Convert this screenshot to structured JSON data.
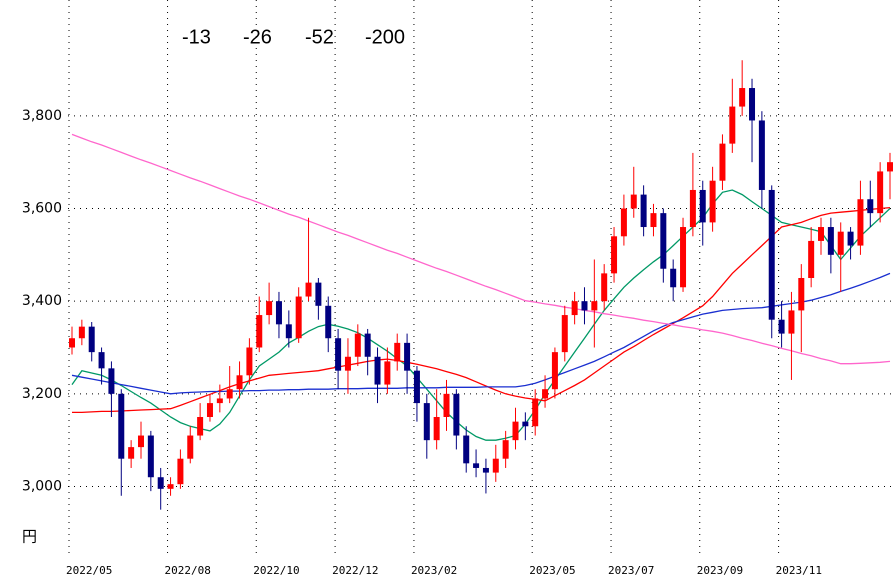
{
  "chart_data": {
    "type": "candlestick",
    "y_label": "円",
    "categories": [
      "2022/05",
      null,
      null,
      null,
      null,
      null,
      null,
      null,
      null,
      null,
      "2022/08",
      null,
      null,
      null,
      null,
      null,
      null,
      null,
      null,
      "2022/10",
      null,
      null,
      null,
      null,
      null,
      null,
      null,
      "2022/12",
      null,
      null,
      null,
      null,
      null,
      null,
      null,
      "2023/02",
      null,
      null,
      null,
      null,
      null,
      null,
      null,
      null,
      null,
      null,
      null,
      "2023/05",
      null,
      null,
      null,
      null,
      null,
      null,
      null,
      "2023/07",
      null,
      null,
      null,
      null,
      null,
      null,
      null,
      null,
      "2023/09",
      null,
      null,
      null,
      null,
      null,
      null,
      null,
      "2023/11",
      null,
      null,
      null,
      null,
      null,
      null,
      null,
      null,
      null,
      null,
      null
    ],
    "open": [
      3300,
      3320,
      3345,
      3290,
      3255,
      3200,
      3060,
      3085,
      3110,
      3020,
      2995,
      3005,
      3060,
      3110,
      3150,
      3180,
      3190,
      3210,
      3240,
      3300,
      3370,
      3400,
      3350,
      3320,
      3410,
      3440,
      3390,
      3320,
      3250,
      3280,
      3330,
      3280,
      3220,
      3270,
      3310,
      3250,
      3180,
      3100,
      3150,
      3200,
      3110,
      3050,
      3040,
      3030,
      3060,
      3100,
      3140,
      3130,
      3190,
      3210,
      3290,
      3370,
      3400,
      3380,
      3400,
      3460,
      3540,
      3600,
      3630,
      3560,
      3590,
      3470,
      3430,
      3560,
      3640,
      3570,
      3660,
      3740,
      3820,
      3860,
      3790,
      3640,
      3360,
      3330,
      3380,
      3450,
      3530,
      3560,
      3500,
      3550,
      3520,
      3620,
      3590,
      3680
    ],
    "high": [
      3345,
      3360,
      3355,
      3300,
      3270,
      3210,
      3100,
      3140,
      3120,
      3040,
      3020,
      3080,
      3130,
      3180,
      3200,
      3220,
      3260,
      3270,
      3320,
      3410,
      3440,
      3420,
      3380,
      3430,
      3580,
      3450,
      3410,
      3340,
      3320,
      3350,
      3340,
      3300,
      3300,
      3330,
      3330,
      3260,
      3200,
      3210,
      3230,
      3210,
      3130,
      3080,
      3060,
      3090,
      3120,
      3170,
      3160,
      3210,
      3240,
      3300,
      3390,
      3420,
      3430,
      3490,
      3480,
      3560,
      3630,
      3690,
      3650,
      3610,
      3600,
      3490,
      3580,
      3720,
      3660,
      3690,
      3760,
      3880,
      3920,
      3880,
      3810,
      3650,
      3400,
      3420,
      3480,
      3560,
      3580,
      3580,
      3570,
      3560,
      3660,
      3660,
      3700,
      3720
    ],
    "low": [
      3285,
      3305,
      3270,
      3220,
      3150,
      2980,
      3040,
      3060,
      2990,
      2950,
      2980,
      2995,
      3050,
      3100,
      3140,
      3160,
      3180,
      3190,
      3220,
      3290,
      3350,
      3320,
      3300,
      3310,
      3400,
      3360,
      3290,
      3210,
      3200,
      3260,
      3240,
      3180,
      3200,
      3250,
      3200,
      3140,
      3060,
      3080,
      3120,
      3080,
      3030,
      3020,
      2985,
      3010,
      3040,
      3080,
      3100,
      3110,
      3170,
      3190,
      3270,
      3350,
      3350,
      3300,
      3380,
      3440,
      3520,
      3580,
      3540,
      3540,
      3440,
      3400,
      3420,
      3540,
      3520,
      3550,
      3640,
      3720,
      3800,
      3700,
      3600,
      3320,
      3300,
      3230,
      3290,
      3430,
      3500,
      3460,
      3420,
      3490,
      3500,
      3560,
      3570,
      3620
    ],
    "close": [
      3320,
      3345,
      3290,
      3255,
      3200,
      3060,
      3085,
      3110,
      3020,
      2995,
      3005,
      3060,
      3110,
      3150,
      3180,
      3190,
      3210,
      3240,
      3300,
      3370,
      3400,
      3350,
      3320,
      3410,
      3440,
      3390,
      3320,
      3250,
      3280,
      3330,
      3280,
      3220,
      3270,
      3310,
      3250,
      3180,
      3100,
      3150,
      3200,
      3110,
      3050,
      3040,
      3030,
      3060,
      3100,
      3140,
      3130,
      3190,
      3210,
      3290,
      3370,
      3400,
      3380,
      3400,
      3460,
      3540,
      3600,
      3630,
      3560,
      3590,
      3470,
      3430,
      3560,
      3640,
      3570,
      3660,
      3740,
      3820,
      3860,
      3790,
      3640,
      3360,
      3330,
      3380,
      3450,
      3530,
      3560,
      3500,
      3550,
      3520,
      3620,
      3590,
      3680,
      3700
    ],
    "up_color": "#ff0000",
    "down_color": "#000080",
    "series": [
      {
        "name": "-13",
        "color": "#009966",
        "values": [
          3220,
          3250,
          3245,
          3240,
          3230,
          3218,
          3205,
          3192,
          3180,
          3165,
          3150,
          3138,
          3130,
          3125,
          3120,
          3135,
          3160,
          3195,
          3230,
          3260,
          3275,
          3290,
          3310,
          3322,
          3335,
          3345,
          3350,
          3346,
          3340,
          3332,
          3320,
          3306,
          3292,
          3276,
          3260,
          3235,
          3210,
          3185,
          3160,
          3140,
          3122,
          3108,
          3100,
          3100,
          3104,
          3110,
          3135,
          3165,
          3200,
          3230,
          3260,
          3290,
          3320,
          3350,
          3380,
          3405,
          3430,
          3450,
          3468,
          3485,
          3500,
          3520,
          3540,
          3560,
          3580,
          3610,
          3635,
          3640,
          3630,
          3615,
          3600,
          3585,
          3570,
          3565,
          3560,
          3555,
          3550,
          3520,
          3490,
          3515,
          3540,
          3560,
          3580,
          3600
        ]
      },
      {
        "name": "-26",
        "color": "#ff0000",
        "values": [
          3160,
          3160,
          3161,
          3162,
          3162,
          3163,
          3164,
          3165,
          3166,
          3167,
          3168,
          3175,
          3183,
          3191,
          3199,
          3207,
          3215,
          3222,
          3228,
          3234,
          3240,
          3242,
          3244,
          3246,
          3248,
          3250,
          3254,
          3258,
          3262,
          3266,
          3270,
          3273,
          3275,
          3272,
          3268,
          3264,
          3259,
          3254,
          3248,
          3242,
          3235,
          3226,
          3217,
          3208,
          3200,
          3195,
          3191,
          3188,
          3185,
          3196,
          3207,
          3218,
          3230,
          3245,
          3260,
          3275,
          3290,
          3302,
          3315,
          3328,
          3340,
          3352,
          3364,
          3377,
          3390,
          3410,
          3435,
          3460,
          3480,
          3500,
          3520,
          3540,
          3560,
          3565,
          3570,
          3578,
          3585,
          3590,
          3592,
          3594,
          3596,
          3598,
          3600,
          3602
        ]
      },
      {
        "name": "-52",
        "color": "#1a2fd0",
        "values": [
          3240,
          3236,
          3232,
          3228,
          3224,
          3220,
          3216,
          3212,
          3208,
          3204,
          3200,
          3202,
          3203,
          3204,
          3205,
          3205,
          3206,
          3206,
          3207,
          3207,
          3208,
          3208,
          3209,
          3209,
          3210,
          3210,
          3210,
          3211,
          3211,
          3211,
          3212,
          3212,
          3212,
          3212,
          3213,
          3213,
          3213,
          3213,
          3214,
          3214,
          3214,
          3214,
          3215,
          3215,
          3215,
          3215,
          3218,
          3223,
          3230,
          3238,
          3246,
          3254,
          3262,
          3270,
          3280,
          3290,
          3300,
          3312,
          3324,
          3336,
          3346,
          3354,
          3360,
          3366,
          3372,
          3376,
          3380,
          3382,
          3384,
          3385,
          3386,
          3389,
          3392,
          3395,
          3398,
          3402,
          3408,
          3414,
          3421,
          3428,
          3435,
          3443,
          3451,
          3460
        ]
      },
      {
        "name": "-200",
        "color": "#ff66cc",
        "values": [
          3760,
          3752,
          3744,
          3737,
          3729,
          3721,
          3713,
          3705,
          3698,
          3690,
          3682,
          3674,
          3666,
          3659,
          3651,
          3643,
          3635,
          3627,
          3620,
          3612,
          3604,
          3596,
          3588,
          3581,
          3573,
          3565,
          3557,
          3549,
          3542,
          3534,
          3526,
          3518,
          3510,
          3503,
          3495,
          3487,
          3479,
          3471,
          3464,
          3456,
          3448,
          3440,
          3432,
          3425,
          3417,
          3409,
          3401,
          3398,
          3394,
          3391,
          3387,
          3384,
          3380,
          3377,
          3373,
          3370,
          3366,
          3363,
          3359,
          3356,
          3352,
          3349,
          3345,
          3342,
          3338,
          3335,
          3331,
          3326,
          3320,
          3315,
          3309,
          3304,
          3298,
          3293,
          3287,
          3282,
          3276,
          3271,
          3265,
          3265,
          3266,
          3267,
          3268,
          3270
        ]
      }
    ],
    "ylim": [
      2850,
      4050
    ],
    "yticks": [
      {
        "value": 3000,
        "label": "3,000"
      },
      {
        "value": 3200,
        "label": "3,200"
      },
      {
        "value": 3400,
        "label": "3,400"
      },
      {
        "value": 3600,
        "label": "3,600"
      },
      {
        "value": 3800,
        "label": "3,800"
      }
    ],
    "grid": true
  }
}
